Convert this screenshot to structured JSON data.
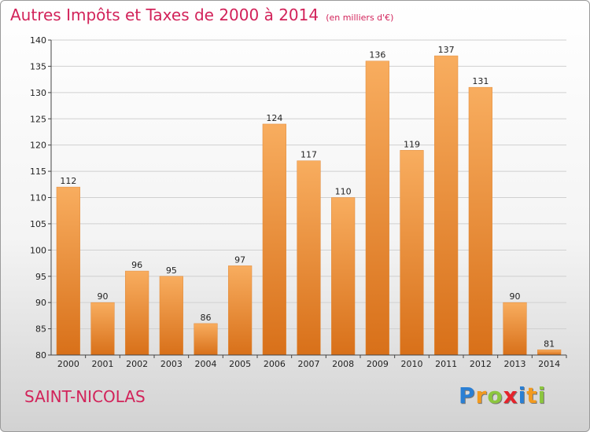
{
  "header": {
    "title": "Autres Impôts et Taxes de 2000 à 2014",
    "unit_note": "(en milliers d'€)"
  },
  "commune": "SAINT-NICOLAS",
  "logo": {
    "letters": [
      {
        "char": "P",
        "color": "#2a7fd4"
      },
      {
        "char": "r",
        "color": "#f29a1f"
      },
      {
        "char": "o",
        "color": "#8cc63f"
      },
      {
        "char": "x",
        "color": "#e5232b"
      },
      {
        "char": "i",
        "color": "#2a7fd4"
      },
      {
        "char": "t",
        "color": "#f29a1f"
      },
      {
        "char": "i",
        "color": "#8cc63f"
      }
    ]
  },
  "chart_data": {
    "type": "bar",
    "title": "Autres Impôts et Taxes de 2000 à 2014",
    "subtitle": "(en milliers d'€)",
    "xlabel": "",
    "ylabel": "",
    "categories": [
      "2000",
      "2001",
      "2002",
      "2003",
      "2004",
      "2005",
      "2006",
      "2007",
      "2008",
      "2009",
      "2010",
      "2011",
      "2012",
      "2013",
      "2014"
    ],
    "values": [
      112,
      90,
      96,
      95,
      86,
      97,
      124,
      117,
      110,
      136,
      119,
      137,
      131,
      90,
      81
    ],
    "ylim": [
      80,
      140
    ],
    "yticks": [
      80,
      85,
      90,
      95,
      100,
      105,
      110,
      115,
      120,
      125,
      130,
      135,
      140
    ],
    "grid": true,
    "legend": "none",
    "colors": {
      "bar_light": "#f8ad5f",
      "bar_dark": "#d87019",
      "grid": "#d0d0d0",
      "axis": "#444444"
    }
  }
}
